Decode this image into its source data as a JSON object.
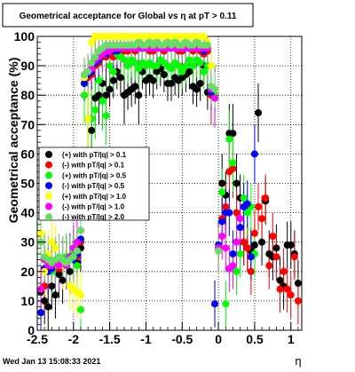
{
  "title": "Geometrical acceptance for Global vs  η at pT > 0.11",
  "footer_timestamp": "Wed Jan 13 15:08:33 2021",
  "chart_data": {
    "type": "scatter",
    "title": "Geometrical acceptance for Global vs  η at pT > 0.11",
    "xlabel": "η",
    "ylabel": "Geometrical acceptance (%)",
    "xlim": [
      -2.5,
      1.15
    ],
    "ylim": [
      0,
      100
    ],
    "grid": true,
    "x_ticks": [
      -2.5,
      -2,
      -1.5,
      -1,
      -0.5,
      0,
      0.5,
      1
    ],
    "x_tick_labels": [
      "-2.5",
      "-2",
      "-1.5",
      "-1",
      "-0.5",
      "0",
      "0.5",
      "1"
    ],
    "y_ticks": [
      0,
      10,
      20,
      30,
      40,
      50,
      60,
      70,
      80,
      90,
      100
    ],
    "y_tick_labels": [
      "0",
      "10",
      "20",
      "30",
      "40",
      "50",
      "60",
      "70",
      "80",
      "90",
      "100"
    ],
    "legend_position": "left-middle",
    "series": [
      {
        "name": "(+) with pT/|q| > 0.1",
        "color": "#000000",
        "x": [
          -2.45,
          -2.4,
          -2.35,
          -2.3,
          -2.25,
          -2.2,
          -2.15,
          -2.1,
          -2.05,
          -2.0,
          -1.95,
          -1.9,
          -1.85,
          -1.8,
          -1.75,
          -1.7,
          -1.65,
          -1.6,
          -1.55,
          -1.5,
          -1.45,
          -1.4,
          -1.35,
          -1.3,
          -1.25,
          -1.2,
          -1.15,
          -1.1,
          -1.05,
          -1.0,
          -0.95,
          -0.9,
          -0.85,
          -0.8,
          -0.75,
          -0.7,
          -0.65,
          -0.6,
          -0.55,
          -0.5,
          -0.45,
          -0.4,
          -0.35,
          -0.3,
          -0.25,
          -0.2,
          -0.15,
          -0.1,
          -0.05,
          0.0,
          0.05,
          0.1,
          0.15,
          0.2,
          0.25,
          0.3,
          0.35,
          0.4,
          0.45,
          0.5,
          0.55,
          0.6,
          0.65,
          0.7,
          0.75,
          0.8,
          0.85,
          0.9,
          0.95,
          1.0,
          1.05,
          1.1
        ],
        "y": [
          13,
          10,
          8,
          15,
          12,
          19,
          17,
          22,
          20,
          25,
          23,
          28,
          86,
          72,
          68,
          79,
          80,
          84,
          80,
          82,
          85,
          88,
          86,
          80,
          81,
          82,
          83,
          80,
          88,
          85,
          86,
          85,
          88,
          89,
          87,
          84,
          84,
          86,
          85,
          86,
          87,
          88,
          83,
          82,
          84,
          90,
          81,
          82,
          80,
          28,
          50,
          46,
          67,
          67,
          50,
          45,
          30,
          28,
          27,
          29,
          74,
          30,
          44,
          26,
          25,
          28,
          17,
          15,
          29,
          29,
          26,
          16
        ]
      },
      {
        "name": "(-) with pT/|q| > 0.1",
        "color": "#ff0000",
        "x": [
          -2.45,
          -2.4,
          -2.35,
          -2.3,
          -2.25,
          -2.2,
          -2.15,
          -2.1,
          -2.05,
          -2.0,
          -1.95,
          -1.9,
          -1.85,
          -1.8,
          -1.75,
          -1.7,
          -1.65,
          -1.6,
          -1.55,
          -1.5,
          -1.45,
          -1.4,
          -1.35,
          -1.3,
          -1.25,
          -1.2,
          -1.15,
          -1.1,
          -1.05,
          -1.0,
          -0.95,
          -0.9,
          -0.85,
          -0.8,
          -0.75,
          -0.7,
          -0.65,
          -0.6,
          -0.55,
          -0.5,
          -0.45,
          -0.4,
          -0.35,
          -0.3,
          -0.25,
          -0.2,
          -0.15,
          -0.1,
          -0.05,
          0.0,
          0.05,
          0.1,
          0.15,
          0.2,
          0.25,
          0.3,
          0.35,
          0.4,
          0.45,
          0.5,
          0.55,
          0.6,
          0.65,
          0.7,
          0.75,
          0.8,
          0.85,
          0.9,
          0.95,
          1.0,
          1.05,
          1.1
        ],
        "y": [
          14,
          15,
          20,
          22,
          22,
          21,
          23,
          24,
          24,
          26,
          25,
          30,
          84,
          86,
          87,
          90,
          91,
          93,
          93,
          94,
          93,
          94,
          95,
          95,
          95,
          96,
          95,
          96,
          96,
          96,
          95,
          95,
          96,
          96,
          95,
          96,
          96,
          96,
          95,
          95,
          96,
          96,
          95,
          96,
          95,
          94,
          95,
          80,
          9,
          28,
          38,
          42,
          54,
          55,
          40,
          35,
          30,
          28,
          20,
          33,
          42,
          38,
          45,
          22,
          32,
          25,
          14,
          20,
          14,
          12,
          25,
          10
        ]
      },
      {
        "name": "(+) with pT/|q| > 0.5",
        "color": "#00ff00",
        "x": [
          -2.45,
          -2.4,
          -2.35,
          -2.3,
          -2.25,
          -2.2,
          -2.15,
          -2.1,
          -2.05,
          -2.0,
          -1.95,
          -1.9,
          -1.85,
          -1.8,
          -1.75,
          -1.7,
          -1.65,
          -1.6,
          -1.55,
          -1.5,
          -1.45,
          -1.4,
          -1.35,
          -1.3,
          -1.25,
          -1.2,
          -1.15,
          -1.1,
          -1.05,
          -1.0,
          -0.95,
          -0.9,
          -0.85,
          -0.8,
          -0.75,
          -0.7,
          -0.65,
          -0.6,
          -0.55,
          -0.5,
          -0.45,
          -0.4,
          -0.35,
          -0.3,
          -0.25,
          -0.2,
          -0.15,
          -0.1,
          -0.05,
          0.0,
          0.05,
          0.1,
          0.15,
          0.2,
          0.25,
          0.3,
          0.35,
          0.4,
          0.45,
          0.5
        ],
        "y": [
          30,
          25,
          22,
          20,
          22,
          23,
          24,
          25,
          24,
          26,
          22,
          7,
          80,
          72,
          72,
          75,
          85,
          78,
          73,
          90,
          88,
          94,
          93,
          92,
          90,
          92,
          91,
          89,
          91,
          90,
          91,
          90,
          90,
          92,
          91,
          90,
          89,
          91,
          90,
          88,
          90,
          92,
          90,
          92,
          91,
          88,
          90,
          82,
          80,
          27,
          47,
          9,
          65,
          57,
          20,
          26,
          45,
          40,
          42,
          26
        ]
      },
      {
        "name": "(-) with pT/|q| > 0.5",
        "color": "#0000ff",
        "x": [
          -2.45,
          -2.4,
          -2.35,
          -2.3,
          -2.25,
          -2.2,
          -2.15,
          -2.1,
          -2.05,
          -2.0,
          -1.95,
          -1.9,
          -1.85,
          -1.8,
          -1.75,
          -1.7,
          -1.65,
          -1.6,
          -1.55,
          -1.5,
          -1.45,
          -1.4,
          -1.35,
          -1.3,
          -1.25,
          -1.2,
          -1.15,
          -1.1,
          -1.05,
          -1.0,
          -0.95,
          -0.9,
          -0.85,
          -0.8,
          -0.75,
          -0.7,
          -0.65,
          -0.6,
          -0.55,
          -0.5,
          -0.45,
          -0.4,
          -0.35,
          -0.3,
          -0.25,
          -0.2,
          -0.15,
          -0.1,
          -0.05,
          0.0,
          0.05,
          0.1,
          0.15,
          0.2,
          0.25,
          0.3,
          0.35,
          0.4,
          0.45,
          0.5
        ],
        "y": [
          6,
          21,
          20,
          21,
          23,
          22,
          24,
          23,
          25,
          24,
          26,
          31,
          84,
          87,
          88,
          91,
          92,
          94,
          94,
          95,
          95,
          95,
          96,
          96,
          96,
          96,
          96,
          96,
          96,
          97,
          96,
          96,
          96,
          96,
          96,
          96,
          96,
          96,
          96,
          96,
          96,
          96,
          96,
          96,
          96,
          95,
          96,
          81,
          9,
          29,
          37,
          40,
          40,
          26,
          30,
          35,
          42,
          43,
          25,
          60
        ]
      },
      {
        "name": "(+) with pT/|q| > 1.0",
        "color": "#ffff00",
        "x": [
          -2.45,
          -2.4,
          -2.35,
          -2.3,
          -2.25,
          -2.2,
          -2.15,
          -2.1,
          -2.05,
          -2.0,
          -1.95,
          -1.9,
          -1.85,
          -1.8,
          -1.75,
          -1.7,
          -1.65,
          -1.6,
          -1.55,
          -1.5,
          -1.45,
          -1.4,
          -1.35,
          -1.3,
          -1.25,
          -1.2,
          -1.15,
          -1.1,
          -1.05,
          -1.0,
          -0.95,
          -0.9,
          -0.85,
          -0.8,
          -0.75,
          -0.7,
          -0.65,
          -0.6,
          -0.55,
          -0.5,
          -0.45,
          -0.4,
          -0.35,
          -0.3,
          -0.25,
          -0.2,
          -0.15,
          -0.1,
          -0.05,
          0.0
        ],
        "y": [
          33,
          20,
          26,
          30,
          28,
          22,
          22,
          23,
          15,
          14,
          13,
          12,
          86,
          72,
          98,
          100,
          100,
          100,
          100,
          100,
          100,
          100,
          100,
          100,
          100,
          100,
          100,
          100,
          100,
          100,
          100,
          100,
          100,
          100,
          100,
          100,
          100,
          100,
          100,
          100,
          100,
          100,
          100,
          100,
          100,
          100,
          98,
          90,
          82,
          28
        ]
      },
      {
        "name": "(-) with pT/|q| > 1.0",
        "color": "#ff00ff",
        "x": [
          -2.45,
          -2.4,
          -2.35,
          -2.3,
          -2.25,
          -2.2,
          -2.15,
          -2.1,
          -2.05,
          -2.0,
          -1.95,
          -1.9,
          -1.85,
          -1.8,
          -1.75,
          -1.7,
          -1.65,
          -1.6,
          -1.55,
          -1.5,
          -1.45,
          -1.4,
          -1.35,
          -1.3,
          -1.25,
          -1.2,
          -1.15,
          -1.1,
          -1.05,
          -1.0,
          -0.95,
          -0.9,
          -0.85,
          -0.8,
          -0.75,
          -0.7,
          -0.65,
          -0.6,
          -0.55,
          -0.5,
          -0.45,
          -0.4,
          -0.35,
          -0.3,
          -0.25,
          -0.2,
          -0.15,
          -0.1,
          -0.05,
          0.0,
          0.05,
          0.1,
          0.15,
          0.2,
          0.25,
          0.3
        ],
        "y": [
          14,
          24,
          22,
          22,
          23,
          22,
          24,
          22,
          25,
          28,
          30,
          34,
          87,
          88,
          89,
          92,
          93,
          94,
          95,
          95,
          96,
          96,
          96,
          96,
          96,
          96,
          96,
          96,
          96,
          96,
          96,
          96,
          96,
          96,
          96,
          96,
          96,
          96,
          96,
          96,
          96,
          96,
          96,
          96,
          96,
          96,
          96,
          82,
          79,
          28,
          32,
          28,
          21,
          22,
          30,
          38
        ]
      },
      {
        "name": "(-) with pT/|q| > 2.0",
        "color": "#66dd66",
        "x": [
          -2.45,
          -2.4,
          -2.35,
          -2.3,
          -2.25,
          -2.2,
          -2.15,
          -2.1,
          -2.05,
          -2.0,
          -1.95,
          -1.9,
          -1.85,
          -1.8,
          -1.75,
          -1.7,
          -1.65,
          -1.6,
          -1.55,
          -1.5,
          -1.45,
          -1.4,
          -1.35,
          -1.3,
          -1.25,
          -1.2,
          -1.15,
          -1.1,
          -1.05,
          -1.0,
          -0.95,
          -0.9,
          -0.85,
          -0.8,
          -0.75,
          -0.7,
          -0.65,
          -0.6,
          -0.55,
          -0.5,
          -0.45,
          -0.4,
          -0.35,
          -0.3,
          -0.25,
          -0.2,
          -0.15,
          -0.1,
          -0.05,
          0.0
        ],
        "y": [
          30,
          25,
          24,
          23,
          24,
          25,
          24,
          23,
          24,
          25,
          27,
          34,
          87,
          88,
          91,
          93,
          95,
          96,
          97,
          97,
          97,
          97,
          97,
          97,
          97,
          97,
          97,
          98,
          97,
          97,
          98,
          97,
          98,
          97,
          97,
          98,
          97,
          98,
          97,
          97,
          98,
          97,
          97,
          98,
          97,
          97,
          97,
          83,
          82,
          27
        ]
      }
    ]
  }
}
